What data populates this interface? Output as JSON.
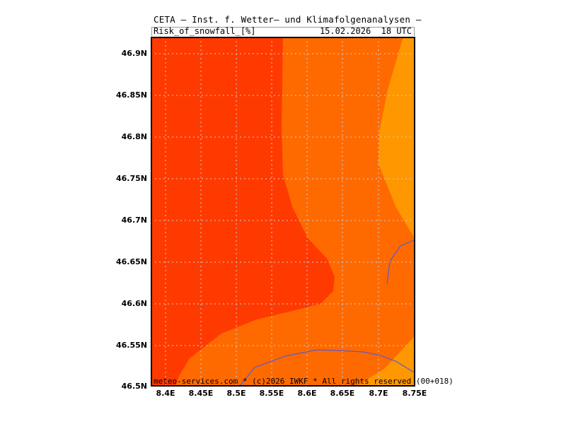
{
  "header": {
    "title": "CETA — Inst. f. Wetter— und Klimafolgenanalysen —",
    "parameter": "Risk_of_snowfall_[%]",
    "datetime": "15.02.2026  18 UTC"
  },
  "map": {
    "lat_labels": [
      "46.9N",
      "46.85N",
      "46.8N",
      "46.75N",
      "46.7N",
      "46.65N",
      "46.6N",
      "46.55N",
      "46.5N"
    ],
    "lon_labels": [
      "8.4E",
      "8.45E",
      "8.5E",
      "8.55E",
      "8.6E",
      "8.65E",
      "8.7E",
      "8.75E"
    ],
    "colors": {
      "zone_high": "#ff3a00",
      "zone_mid": "#ff6a00",
      "zone_low": "#ff9800",
      "grid": "#d0d0d0",
      "border": "#5a5acd"
    }
  },
  "footer": {
    "credit": "meteo-services.com * (c)2026 IWKF * All rights reserved (00+018)"
  }
}
